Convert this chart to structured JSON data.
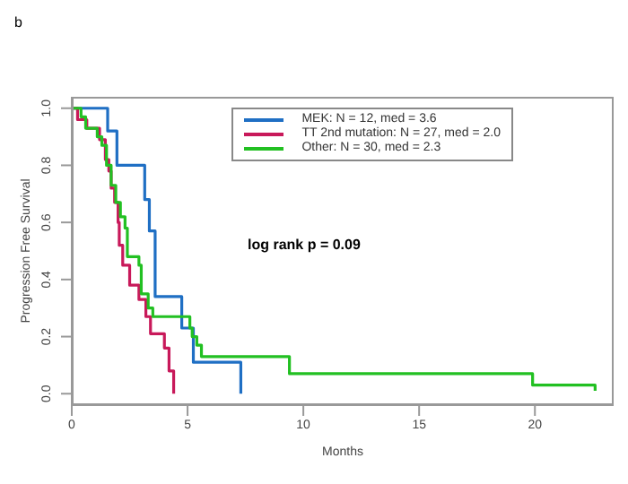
{
  "chart_data": {
    "type": "step",
    "title": "b",
    "xlabel": "Months",
    "ylabel": "Progression Free Survival",
    "xlim": [
      0,
      23.4
    ],
    "xticks": [
      0,
      5,
      10,
      15,
      20
    ],
    "ylim": [
      -0.04,
      1.04
    ],
    "yticks": [
      {
        "value": 0,
        "label": "0.0"
      },
      {
        "value": 0.2,
        "label": "0.2"
      },
      {
        "value": 0.4,
        "label": "0.4"
      },
      {
        "value": 0.6,
        "label": "0.6"
      },
      {
        "value": 0.8,
        "label": "0.8"
      },
      {
        "value": 1,
        "label": "1.0"
      }
    ],
    "legend": "top right",
    "line_style": "solid",
    "marker": "none",
    "annotations": [
      "log rank p = 0.09"
    ],
    "series": [
      {
        "name": "MEK: N = 12, med = 3.6",
        "color": "#1f6fc4",
        "x": [
          0,
          1.55,
          1.95,
          3.15,
          3.35,
          3.6,
          4.75,
          5.25,
          7.3
        ],
        "values": [
          1,
          0.92,
          0.8,
          0.68,
          0.57,
          0.34,
          0.23,
          0.11,
          0
        ]
      },
      {
        "name": "TT 2nd mutation: N = 27, med = 2.0",
        "color": "#c8195a",
        "x": [
          0,
          0.25,
          0.65,
          1.2,
          1.45,
          1.6,
          1.7,
          1.85,
          2.0,
          2.05,
          2.2,
          2.5,
          2.9,
          3.2,
          3.4,
          4.0,
          4.2,
          4.4
        ],
        "values": [
          1,
          0.96,
          0.93,
          0.89,
          0.82,
          0.78,
          0.72,
          0.67,
          0.6,
          0.52,
          0.45,
          0.38,
          0.33,
          0.27,
          0.21,
          0.16,
          0.08,
          0
        ]
      },
      {
        "name": "Other: N = 30, med = 2.3",
        "color": "#22c022",
        "x": [
          0,
          0.4,
          0.6,
          1.1,
          1.3,
          1.5,
          1.7,
          1.9,
          2.1,
          2.3,
          2.4,
          2.9,
          3.0,
          3.3,
          3.5,
          5.1,
          5.2,
          5.4,
          5.6,
          9.4,
          19.9,
          22.6
        ],
        "values": [
          1,
          0.97,
          0.93,
          0.9,
          0.87,
          0.8,
          0.73,
          0.67,
          0.62,
          0.58,
          0.48,
          0.45,
          0.35,
          0.3,
          0.27,
          0.23,
          0.2,
          0.17,
          0.13,
          0.07,
          0.03,
          0.01
        ]
      }
    ]
  }
}
